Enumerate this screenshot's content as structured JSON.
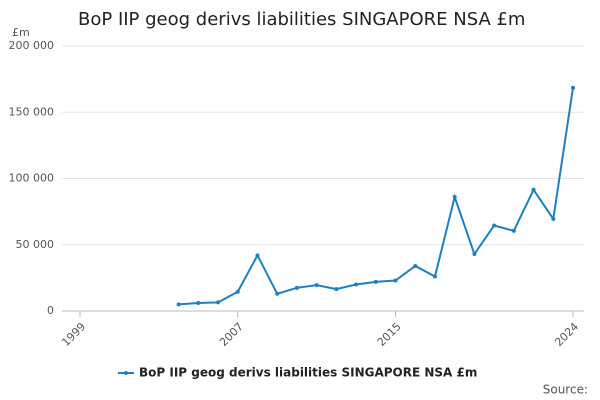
{
  "chart_data": {
    "type": "line",
    "title": "BoP IIP geog derivs liabilities SINGAPORE NSA £m",
    "y_label": "£m",
    "source": "Source:",
    "x": [
      2004,
      2005,
      2006,
      2007,
      2008,
      2009,
      2010,
      2011,
      2012,
      2013,
      2014,
      2015,
      2016,
      2017,
      2018,
      2019,
      2020,
      2021,
      2022,
      2023,
      2024
    ],
    "series": [
      {
        "name": "BoP IIP geog derivs liabilities SINGAPORE NSA £m",
        "color": "#1f7fc0",
        "values": [
          5000,
          6000,
          6500,
          14500,
          42000,
          13000,
          17500,
          19500,
          16500,
          20000,
          22000,
          23000,
          34000,
          26000,
          86000,
          43000,
          64500,
          60500,
          91500,
          69500,
          168500
        ]
      }
    ],
    "xlim": [
      1999,
      2024
    ],
    "xticks": [
      1999,
      2007,
      2015,
      2024
    ],
    "ylim": [
      0,
      200000
    ],
    "yticks": [
      0,
      {
        "value": 50000,
        "label": "50 000"
      },
      {
        "value": 100000,
        "label": "100 000"
      },
      {
        "value": 150000,
        "label": "150 000"
      },
      {
        "value": 200000,
        "label": "200 000"
      }
    ],
    "grid": true
  }
}
